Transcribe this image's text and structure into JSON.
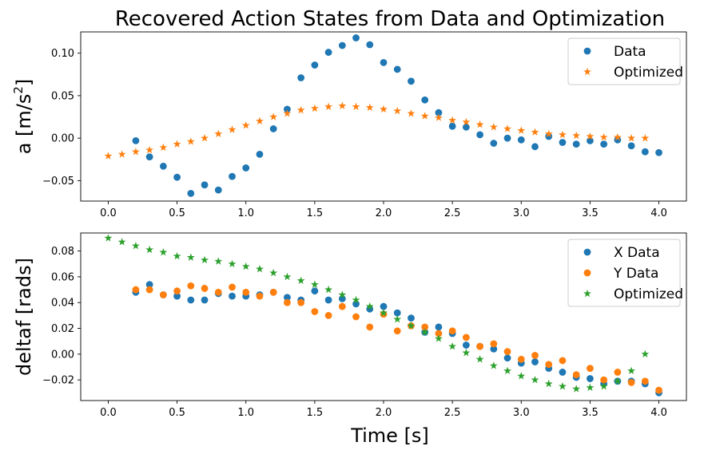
{
  "chart_data": [
    {
      "type": "scatter",
      "title": "Recovered Action States from Data and Optimization",
      "xlabel": "",
      "ylabel": "a [m/s²]",
      "ylabel_main": "a [m/s",
      "ylabel_sup": "2",
      "ylabel_end": "]",
      "xlim": [
        -0.2,
        4.2
      ],
      "ylim": [
        -0.074,
        0.125
      ],
      "xticks": [
        0.0,
        0.5,
        1.0,
        1.5,
        2.0,
        2.5,
        3.0,
        3.5,
        4.0
      ],
      "xtick_labels": [
        "0.0",
        "0.5",
        "1.0",
        "1.5",
        "2.0",
        "2.5",
        "3.0",
        "3.5",
        "4.0"
      ],
      "yticks": [
        -0.05,
        0.0,
        0.05,
        0.1
      ],
      "ytick_labels": [
        "−0.05",
        "0.00",
        "0.05",
        "0.10"
      ],
      "legend_position": "top-right",
      "series": [
        {
          "name": "Data",
          "marker": "circle",
          "color": "#1f77b4",
          "x": [
            0.2,
            0.3,
            0.4,
            0.5,
            0.6,
            0.7,
            0.8,
            0.9,
            1.0,
            1.1,
            1.2,
            1.3,
            1.4,
            1.5,
            1.6,
            1.7,
            1.8,
            1.9,
            2.0,
            2.1,
            2.2,
            2.3,
            2.4,
            2.5,
            2.6,
            2.7,
            2.8,
            2.9,
            3.0,
            3.1,
            3.2,
            3.3,
            3.4,
            3.5,
            3.6,
            3.7,
            3.8,
            3.9,
            4.0
          ],
          "y": [
            -0.003,
            -0.022,
            -0.033,
            -0.046,
            -0.065,
            -0.055,
            -0.061,
            -0.045,
            -0.035,
            -0.019,
            0.011,
            0.034,
            0.071,
            0.086,
            0.101,
            0.109,
            0.118,
            0.11,
            0.089,
            0.081,
            0.067,
            0.045,
            0.03,
            0.014,
            0.013,
            0.004,
            -0.006,
            0.0,
            -0.002,
            -0.01,
            0.002,
            -0.005,
            -0.007,
            -0.003,
            -0.007,
            -0.002,
            -0.009,
            -0.016,
            -0.017
          ]
        },
        {
          "name": "Optimized",
          "marker": "star",
          "color": "#ff7f0e",
          "x": [
            0.0,
            0.1,
            0.2,
            0.3,
            0.4,
            0.5,
            0.6,
            0.7,
            0.8,
            0.9,
            1.0,
            1.1,
            1.2,
            1.3,
            1.4,
            1.5,
            1.6,
            1.7,
            1.8,
            1.9,
            2.0,
            2.1,
            2.2,
            2.3,
            2.4,
            2.5,
            2.6,
            2.7,
            2.8,
            2.9,
            3.0,
            3.1,
            3.2,
            3.3,
            3.4,
            3.5,
            3.6,
            3.7,
            3.8,
            3.9
          ],
          "y": [
            -0.021,
            -0.019,
            -0.016,
            -0.014,
            -0.011,
            -0.007,
            -0.004,
            0.0,
            0.005,
            0.01,
            0.015,
            0.02,
            0.025,
            0.029,
            0.033,
            0.035,
            0.037,
            0.038,
            0.037,
            0.036,
            0.034,
            0.032,
            0.029,
            0.026,
            0.024,
            0.021,
            0.019,
            0.016,
            0.013,
            0.011,
            0.009,
            0.007,
            0.005,
            0.004,
            0.003,
            0.002,
            0.001,
            0.001,
            0.0,
            0.0
          ]
        }
      ]
    },
    {
      "type": "scatter",
      "title": "",
      "xlabel": "Time [s]",
      "ylabel": "deltaf [rads]",
      "xlim": [
        -0.2,
        4.2
      ],
      "ylim": [
        -0.036,
        0.094
      ],
      "xticks": [
        0.0,
        0.5,
        1.0,
        1.5,
        2.0,
        2.5,
        3.0,
        3.5,
        4.0
      ],
      "xtick_labels": [
        "0.0",
        "0.5",
        "1.0",
        "1.5",
        "2.0",
        "2.5",
        "3.0",
        "3.5",
        "4.0"
      ],
      "yticks": [
        -0.02,
        0.0,
        0.02,
        0.04,
        0.06,
        0.08
      ],
      "ytick_labels": [
        "−0.02",
        "0.00",
        "0.02",
        "0.04",
        "0.06",
        "0.08"
      ],
      "legend_position": "top-right",
      "series": [
        {
          "name": "X Data",
          "marker": "circle",
          "color": "#1f77b4",
          "x": [
            0.2,
            0.3,
            0.4,
            0.5,
            0.6,
            0.7,
            0.8,
            0.9,
            1.0,
            1.1,
            1.2,
            1.3,
            1.4,
            1.5,
            1.6,
            1.7,
            1.8,
            1.9,
            2.0,
            2.1,
            2.2,
            2.3,
            2.4,
            2.5,
            2.6,
            2.7,
            2.8,
            2.9,
            3.0,
            3.1,
            3.2,
            3.3,
            3.4,
            3.5,
            3.6,
            3.7,
            3.8,
            3.9,
            4.0
          ],
          "y": [
            0.048,
            0.054,
            0.046,
            0.045,
            0.042,
            0.042,
            0.047,
            0.045,
            0.045,
            0.046,
            0.048,
            0.044,
            0.042,
            0.049,
            0.042,
            0.043,
            0.039,
            0.035,
            0.037,
            0.032,
            0.028,
            0.017,
            0.021,
            0.016,
            0.007,
            0.006,
            0.004,
            -0.003,
            -0.007,
            -0.006,
            -0.011,
            -0.014,
            -0.018,
            -0.019,
            -0.023,
            -0.021,
            -0.021,
            -0.023,
            -0.03
          ]
        },
        {
          "name": "Y Data",
          "marker": "circle",
          "color": "#ff7f0e",
          "x": [
            0.2,
            0.3,
            0.4,
            0.5,
            0.6,
            0.7,
            0.8,
            0.9,
            1.0,
            1.1,
            1.2,
            1.3,
            1.4,
            1.5,
            1.6,
            1.7,
            1.8,
            1.9,
            2.0,
            2.1,
            2.2,
            2.3,
            2.4,
            2.5,
            2.6,
            2.7,
            2.8,
            2.9,
            3.0,
            3.1,
            3.2,
            3.3,
            3.4,
            3.5,
            3.6,
            3.7,
            3.8,
            3.9,
            4.0
          ],
          "y": [
            0.05,
            0.05,
            0.046,
            0.049,
            0.053,
            0.051,
            0.048,
            0.052,
            0.048,
            0.045,
            0.048,
            0.04,
            0.04,
            0.033,
            0.03,
            0.037,
            0.029,
            0.021,
            0.031,
            0.018,
            0.022,
            0.021,
            0.016,
            0.018,
            0.013,
            0.006,
            0.008,
            0.002,
            -0.004,
            -0.001,
            -0.008,
            -0.005,
            -0.016,
            -0.011,
            -0.02,
            -0.014,
            -0.022,
            -0.021,
            -0.028
          ]
        },
        {
          "name": "Optimized",
          "marker": "star",
          "color": "#2ca02c",
          "x": [
            0.0,
            0.1,
            0.2,
            0.3,
            0.4,
            0.5,
            0.6,
            0.7,
            0.8,
            0.9,
            1.0,
            1.1,
            1.2,
            1.3,
            1.4,
            1.5,
            1.6,
            1.7,
            1.8,
            1.9,
            2.0,
            2.1,
            2.2,
            2.3,
            2.4,
            2.5,
            2.6,
            2.7,
            2.8,
            2.9,
            3.0,
            3.1,
            3.2,
            3.3,
            3.4,
            3.5,
            3.6,
            3.7,
            3.8,
            3.9
          ],
          "y": [
            0.09,
            0.087,
            0.084,
            0.081,
            0.079,
            0.076,
            0.075,
            0.073,
            0.072,
            0.07,
            0.068,
            0.066,
            0.063,
            0.06,
            0.057,
            0.054,
            0.05,
            0.046,
            0.042,
            0.037,
            0.032,
            0.027,
            0.022,
            0.017,
            0.012,
            0.006,
            0.001,
            -0.004,
            -0.009,
            -0.013,
            -0.017,
            -0.02,
            -0.023,
            -0.025,
            -0.027,
            -0.026,
            -0.025,
            -0.021,
            -0.013,
            0.0
          ]
        }
      ]
    }
  ]
}
